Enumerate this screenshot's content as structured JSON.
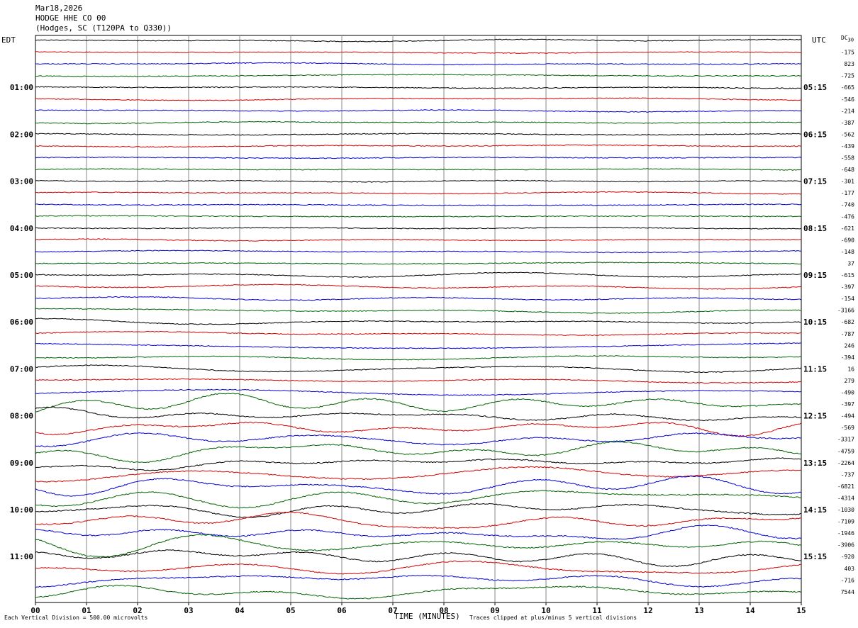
{
  "header": {
    "date": "Mar18,2026",
    "station": "HODGE HHE CO 00",
    "location": "(Hodges, SC (T120PA to Q330))"
  },
  "corners": {
    "left_tz": "EDT",
    "right_tz": "UTC",
    "dc_label": "DC",
    "dc_top_value": "30"
  },
  "footer": {
    "left": "Each Vertical Division =  500.00 microvolts",
    "xlabel": "TIME (MINUTES)",
    "right": "Traces clipped at plus/minus 5 vertical divisions"
  },
  "colors": [
    "#000000",
    "#d40000",
    "#0000d4",
    "#006400"
  ],
  "chart_data": {
    "type": "line",
    "title": "HODGE HHE CO 00",
    "xlabel": "TIME (MINUTES)",
    "xlim": [
      0,
      15
    ],
    "x_ticks": [
      "00",
      "01",
      "02",
      "03",
      "04",
      "05",
      "06",
      "07",
      "08",
      "09",
      "10",
      "11",
      "12",
      "13",
      "14",
      "15"
    ],
    "trace_count": 48,
    "trace_minutes": 15,
    "left_hour_labels": [
      "01:00",
      "02:00",
      "03:00",
      "04:00",
      "05:00",
      "06:00",
      "07:00",
      "08:00",
      "09:00",
      "10:00",
      "11:00"
    ],
    "right_hour_labels": [
      "05:15",
      "06:15",
      "07:15",
      "08:15",
      "09:15",
      "10:15",
      "11:15",
      "12:15",
      "13:15",
      "14:15",
      "15:15"
    ],
    "dc_offsets": [
      "-175",
      "823",
      "-725",
      "-665",
      "-546",
      "-214",
      "-387",
      "-562",
      "-439",
      "-558",
      "-648",
      "-301",
      "-177",
      "-740",
      "-476",
      "-621",
      "-690",
      "-148",
      "37",
      "-615",
      "-397",
      "-154",
      "-3166",
      "-682",
      "-787",
      "246",
      "-394",
      "16",
      "279",
      "-490",
      "-397",
      "-494",
      "-569",
      "-3317",
      "-4759",
      "-2264",
      "-737",
      "-6821",
      "-4314",
      "-1030",
      "-7109",
      "-1946",
      "-3906",
      "-920",
      "403",
      "-716",
      "7544"
    ],
    "amplitude_per_division": "500.00 microvolts",
    "clip": "plus/minus 5 vertical divisions"
  }
}
